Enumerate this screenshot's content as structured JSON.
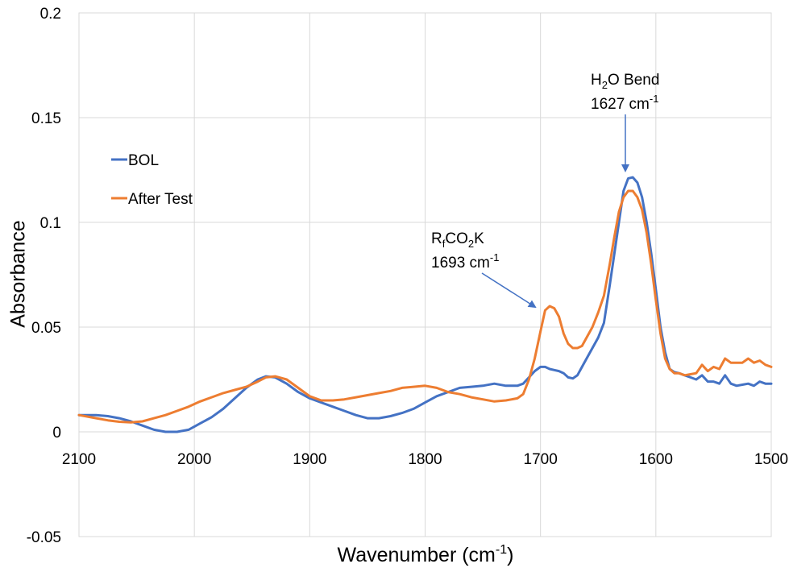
{
  "chart_data": {
    "type": "line",
    "title": "",
    "xlabel": "Wavenumber (cm",
    "xlabel_sup": "-1",
    "xlabel_end": ")",
    "ylabel": "Absorbance",
    "xlim": [
      2100,
      1500
    ],
    "ylim": [
      -0.05,
      0.2
    ],
    "x_reversed": true,
    "grid": true,
    "legend_position": "upper-left",
    "x_ticks": [
      2100,
      2000,
      1900,
      1800,
      1700,
      1600,
      1500
    ],
    "x_tick_labels": [
      "2100",
      "2000",
      "1900",
      "1800",
      "1700",
      "1600",
      "1500"
    ],
    "y_ticks": [
      -0.05,
      0,
      0.05,
      0.1,
      0.15,
      0.2
    ],
    "y_tick_labels": [
      "-0.05",
      "0",
      "0.05",
      "0.1",
      "0.15",
      "0.2"
    ],
    "series": [
      {
        "name": "BOL",
        "color": "#4472c4",
        "x": [
          2100,
          2085,
          2075,
          2065,
          2055,
          2045,
          2035,
          2025,
          2015,
          2005,
          1995,
          1985,
          1975,
          1965,
          1955,
          1945,
          1938,
          1930,
          1920,
          1910,
          1900,
          1890,
          1880,
          1870,
          1860,
          1850,
          1840,
          1830,
          1820,
          1810,
          1800,
          1790,
          1780,
          1770,
          1760,
          1750,
          1740,
          1730,
          1720,
          1715,
          1710,
          1705,
          1700,
          1696,
          1692,
          1688,
          1684,
          1680,
          1676,
          1672,
          1668,
          1664,
          1660,
          1655,
          1650,
          1645,
          1640,
          1636,
          1632,
          1628,
          1624,
          1620,
          1616,
          1612,
          1608,
          1604,
          1600,
          1596,
          1592,
          1588,
          1584,
          1580,
          1575,
          1570,
          1565,
          1560,
          1555,
          1550,
          1545,
          1540,
          1535,
          1530,
          1525,
          1520,
          1515,
          1510,
          1505,
          1500
        ],
        "y": [
          0.008,
          0.008,
          0.0075,
          0.0065,
          0.005,
          0.003,
          0.001,
          0.0,
          0.0,
          0.001,
          0.004,
          0.007,
          0.011,
          0.016,
          0.021,
          0.025,
          0.0265,
          0.026,
          0.023,
          0.019,
          0.016,
          0.014,
          0.012,
          0.01,
          0.008,
          0.0065,
          0.0065,
          0.0075,
          0.009,
          0.011,
          0.014,
          0.017,
          0.019,
          0.021,
          0.0215,
          0.022,
          0.023,
          0.022,
          0.022,
          0.023,
          0.026,
          0.029,
          0.031,
          0.031,
          0.03,
          0.0295,
          0.029,
          0.028,
          0.026,
          0.0255,
          0.027,
          0.031,
          0.035,
          0.04,
          0.045,
          0.052,
          0.07,
          0.085,
          0.1,
          0.115,
          0.121,
          0.1215,
          0.119,
          0.112,
          0.1,
          0.085,
          0.068,
          0.05,
          0.038,
          0.03,
          0.0285,
          0.028,
          0.027,
          0.026,
          0.025,
          0.027,
          0.024,
          0.024,
          0.023,
          0.027,
          0.023,
          0.022,
          0.0225,
          0.023,
          0.022,
          0.024,
          0.023,
          0.023
        ]
      },
      {
        "name": "After Test",
        "color": "#ed7d31",
        "x": [
          2100,
          2085,
          2075,
          2065,
          2055,
          2045,
          2035,
          2025,
          2015,
          2005,
          1995,
          1985,
          1975,
          1965,
          1955,
          1945,
          1938,
          1930,
          1920,
          1910,
          1900,
          1890,
          1880,
          1870,
          1860,
          1850,
          1840,
          1830,
          1820,
          1810,
          1800,
          1790,
          1780,
          1770,
          1760,
          1750,
          1740,
          1730,
          1720,
          1715,
          1710,
          1705,
          1700,
          1696,
          1692,
          1688,
          1684,
          1680,
          1676,
          1672,
          1668,
          1664,
          1660,
          1655,
          1650,
          1645,
          1640,
          1636,
          1632,
          1628,
          1624,
          1620,
          1616,
          1612,
          1608,
          1604,
          1600,
          1596,
          1592,
          1588,
          1584,
          1580,
          1575,
          1570,
          1565,
          1560,
          1555,
          1550,
          1545,
          1540,
          1535,
          1530,
          1525,
          1520,
          1515,
          1510,
          1505,
          1500
        ],
        "y": [
          0.008,
          0.0065,
          0.0055,
          0.0048,
          0.0045,
          0.005,
          0.0065,
          0.008,
          0.01,
          0.012,
          0.0145,
          0.0165,
          0.0185,
          0.02,
          0.0215,
          0.024,
          0.026,
          0.0265,
          0.025,
          0.021,
          0.017,
          0.015,
          0.015,
          0.0155,
          0.0165,
          0.0175,
          0.0185,
          0.0195,
          0.021,
          0.0215,
          0.022,
          0.021,
          0.019,
          0.018,
          0.0165,
          0.0155,
          0.0145,
          0.015,
          0.016,
          0.018,
          0.025,
          0.035,
          0.048,
          0.058,
          0.06,
          0.059,
          0.055,
          0.047,
          0.042,
          0.04,
          0.04,
          0.041,
          0.045,
          0.05,
          0.057,
          0.065,
          0.08,
          0.093,
          0.105,
          0.112,
          0.115,
          0.115,
          0.112,
          0.106,
          0.095,
          0.08,
          0.063,
          0.047,
          0.035,
          0.03,
          0.028,
          0.028,
          0.027,
          0.0275,
          0.028,
          0.032,
          0.029,
          0.031,
          0.03,
          0.035,
          0.033,
          0.033,
          0.033,
          0.035,
          0.033,
          0.034,
          0.032,
          0.031
        ]
      }
    ],
    "annotations": [
      {
        "main": "R",
        "sub1": "f",
        "mid": "CO",
        "sub2": "2",
        "end": "K",
        "line2": "1693 cm",
        "line2_sup": "-1"
      },
      {
        "main": "H",
        "sub1": "2",
        "mid": "O Bend",
        "sub2": "",
        "end": "",
        "line2": "1627 cm",
        "line2_sup": "-1"
      }
    ]
  }
}
